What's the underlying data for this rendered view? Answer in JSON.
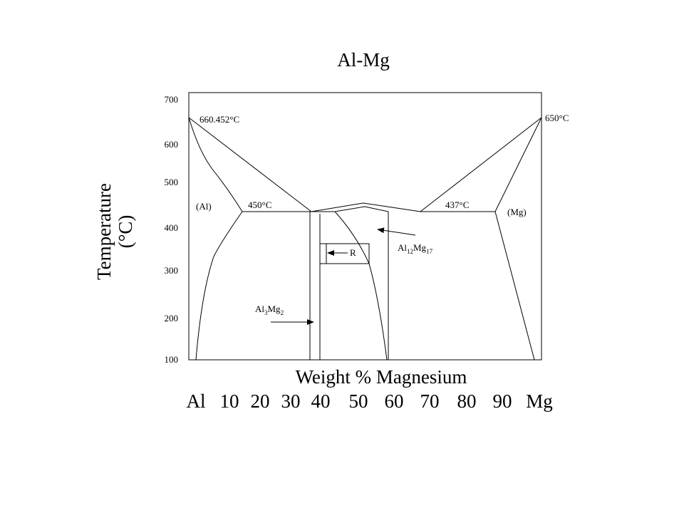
{
  "title": "Al-Mg",
  "y_axis": {
    "label_line1": "Temperature",
    "label_line2": "(°C)",
    "ticks": [
      "700",
      "600",
      "500",
      "400",
      "300",
      "200",
      "100"
    ]
  },
  "x_axis": {
    "label": "Weight % Magnesium",
    "ticks": [
      "Al",
      "10",
      "20",
      "30",
      "40",
      "50",
      "60",
      "70",
      "80",
      "90",
      "Mg"
    ]
  },
  "annotations": {
    "al_melting": "660.452°C",
    "mg_melting": "650°C",
    "al_phase": "(Al)",
    "mg_phase": "(Mg)",
    "eutectic_left": "450°C",
    "eutectic_right": "437°C",
    "r_phase": "R",
    "gamma_phase": [
      "Al",
      "12",
      "Mg",
      "17"
    ],
    "beta_phase": [
      "Al",
      "3",
      "Mg",
      "2"
    ]
  }
}
